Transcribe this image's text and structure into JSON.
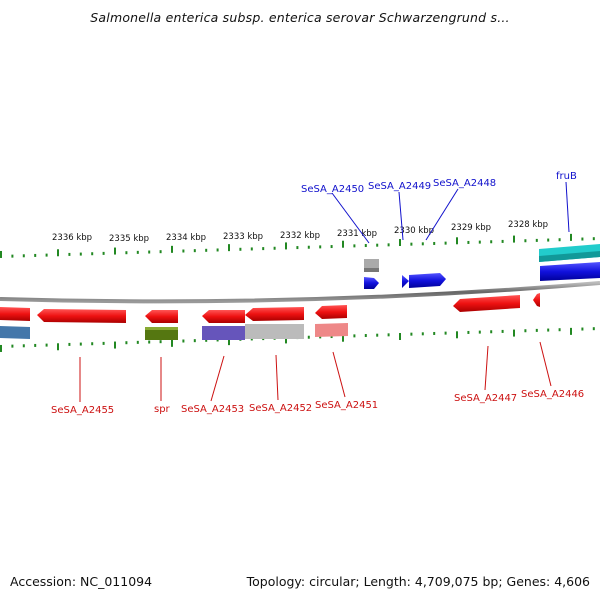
{
  "title": "Salmonella enterica subsp. enterica serovar Schwarzengrund s...",
  "footer": {
    "accession": "Accession: NC_011094",
    "summary": "Topology: circular; Length: 4,709,075 bp; Genes: 4,606"
  },
  "scale_labels": [
    "2336 kbp",
    "2335 kbp",
    "2334 kbp",
    "2333 kbp",
    "2332 kbp",
    "2331 kbp",
    "2330 kbp",
    "2329 kbp",
    "2328 kbp"
  ],
  "gene_labels": {
    "SeSA_A2450": "SeSA_A2450",
    "SeSA_A2449": "SeSA_A2449",
    "SeSA_A2448": "SeSA_A2448",
    "fruB": "fruB",
    "SeSA_A2455": "SeSA_A2455",
    "spr": "spr",
    "SeSA_A2453": "SeSA_A2453",
    "SeSA_A2452": "SeSA_A2452",
    "SeSA_A2451": "SeSA_A2451",
    "SeSA_A2447": "SeSA_A2447",
    "SeSA_A2446": "SeSA_A2446"
  },
  "colors": {
    "reverse_strand": "#ee1111",
    "forward_strand": "#1111dd",
    "tick": "#228822",
    "backbone": "#888888",
    "label_forward": "#1111cc",
    "label_reverse": "#cc1111"
  }
}
